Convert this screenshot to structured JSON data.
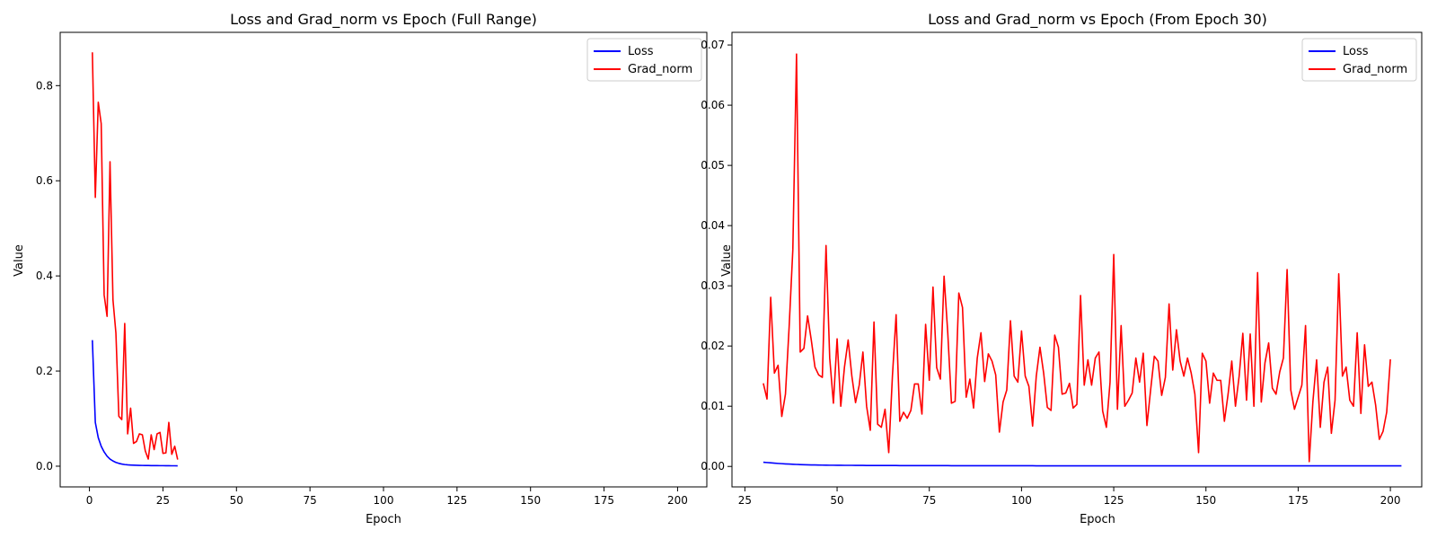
{
  "chart_data": [
    {
      "type": "line",
      "title": "Loss and Grad_norm vs Epoch (Full Range)",
      "xlabel": "Epoch",
      "ylabel": "Value",
      "xlim": [
        -9.95,
        209.95
      ],
      "ylim": [
        -0.0435,
        0.912
      ],
      "xticks": [
        0,
        25,
        50,
        75,
        100,
        125,
        150,
        175,
        200
      ],
      "yticks": [
        0.0,
        0.2,
        0.4,
        0.6,
        0.8
      ],
      "ytick_labels": [
        "0.0",
        "0.2",
        "0.4",
        "0.6",
        "0.8"
      ],
      "legend": "top-right",
      "grid": false,
      "series": [
        {
          "name": "Loss",
          "color": "#0000ff",
          "x_start": 1,
          "values": [
            0.265,
            0.092,
            0.06,
            0.042,
            0.03,
            0.021,
            0.015,
            0.011,
            0.008,
            0.006,
            0.0045,
            0.0035,
            0.0028,
            0.0024,
            0.0021,
            0.0019,
            0.0017,
            0.0016,
            0.0015,
            0.0014,
            0.0013,
            0.0012,
            0.0012,
            0.0011,
            0.0011,
            0.001,
            0.001,
            0.0009,
            0.0009,
            0.0008
          ]
        },
        {
          "name": "Grad_norm",
          "color": "#ff0000",
          "x_start": 1,
          "values": [
            0.87,
            0.565,
            0.765,
            0.72,
            0.36,
            0.315,
            0.64,
            0.35,
            0.28,
            0.105,
            0.098,
            0.3,
            0.068,
            0.122,
            0.048,
            0.052,
            0.068,
            0.066,
            0.032,
            0.015,
            0.066,
            0.035,
            0.068,
            0.071,
            0.027,
            0.028,
            0.092,
            0.025,
            0.042,
            0.014
          ]
        }
      ]
    },
    {
      "type": "line",
      "title": "Loss and Grad_norm vs Epoch (From Epoch 30)",
      "xlabel": "Epoch",
      "ylabel": "Value",
      "xlim": [
        21.5,
        208.5
      ],
      "ylim": [
        -0.0034,
        0.0721
      ],
      "xticks": [
        25,
        50,
        75,
        100,
        125,
        150,
        175,
        200
      ],
      "yticks": [
        0.0,
        0.01,
        0.02,
        0.03,
        0.04,
        0.05,
        0.06,
        0.07
      ],
      "ytick_labels": [
        "0.00",
        "0.01",
        "0.02",
        "0.03",
        "0.04",
        "0.05",
        "0.06",
        "0.07"
      ],
      "legend": "top-right",
      "grid": false,
      "series": [
        {
          "name": "Loss",
          "color": "#0000ff",
          "x_start": 30,
          "values": [
            0.0007,
            0.00065,
            0.0006,
            0.00055,
            0.0005,
            0.00046,
            0.00042,
            0.00039,
            0.00036,
            0.00033,
            0.00031,
            0.00029,
            0.00027,
            0.00025,
            0.00024,
            0.00023,
            0.00022,
            0.00021,
            0.0002,
            0.0002,
            0.00019,
            0.00019,
            0.00018,
            0.00018,
            0.00018,
            0.00017,
            0.00017,
            0.00017,
            0.00016,
            0.00016,
            0.00016,
            0.00016,
            0.00015,
            0.00015,
            0.00015,
            0.00015,
            0.00015,
            0.00014,
            0.00014,
            0.00014,
            0.00014,
            0.00014,
            0.00014,
            0.00013,
            0.00013,
            0.00013,
            0.00013,
            0.00013,
            0.00013,
            0.00013,
            0.00013,
            0.00012,
            0.00012,
            0.00012,
            0.00012,
            0.00012,
            0.00012,
            0.00012,
            0.00012,
            0.00012,
            0.00012,
            0.00011,
            0.00011,
            0.00011,
            0.00011,
            0.00011,
            0.00011,
            0.00011,
            0.00011,
            0.00011,
            0.00011,
            0.00011,
            0.00011,
            0.00011,
            0.0001,
            0.0001,
            0.0001,
            0.0001,
            0.0001,
            0.0001,
            0.0001,
            0.0001,
            0.0001,
            0.0001,
            0.0001,
            0.0001,
            0.0001,
            0.0001,
            0.0001,
            0.0001,
            0.0001,
            0.0001,
            0.0001,
            0.0001,
            0.0001,
            0.0001,
            0.0001,
            0.0001,
            0.0001,
            0.0001,
            0.0001,
            0.0001,
            0.0001,
            0.0001,
            0.0001,
            0.0001,
            0.0001,
            0.0001,
            0.0001,
            0.0001,
            0.0001,
            0.0001,
            0.0001,
            0.0001,
            0.0001,
            0.0001,
            0.0001,
            0.0001,
            0.0001,
            0.0001,
            0.0001,
            0.0001,
            0.0001,
            0.0001,
            0.0001,
            0.0001,
            0.0001,
            0.0001,
            0.0001,
            0.0001,
            0.0001,
            0.0001,
            0.0001,
            0.0001,
            0.0001,
            0.0001,
            0.0001,
            0.0001,
            0.0001,
            0.0001,
            0.0001,
            0.0001,
            0.0001,
            0.0001,
            0.0001,
            0.0001,
            0.0001,
            0.0001,
            0.0001,
            0.0001,
            0.0001,
            0.0001,
            0.0001,
            0.0001,
            0.0001,
            0.0001,
            0.0001,
            0.0001,
            0.0001,
            0.0001,
            0.0001,
            0.0001,
            0.0001,
            0.0001,
            0.0001,
            0.0001,
            0.0001,
            0.0001,
            0.0001,
            0.0001,
            0.0001,
            0.0001,
            0.0001,
            0.0001
          ]
        },
        {
          "name": "Grad_norm",
          "color": "#ff0000",
          "x_start": 30,
          "values": [
            0.0138,
            0.0112,
            0.0281,
            0.0155,
            0.0168,
            0.0083,
            0.012,
            0.0232,
            0.036,
            0.0685,
            0.019,
            0.0196,
            0.025,
            0.021,
            0.0165,
            0.0152,
            0.0148,
            0.0367,
            0.018,
            0.0105,
            0.0212,
            0.01,
            0.0165,
            0.021,
            0.015,
            0.0106,
            0.0135,
            0.019,
            0.01,
            0.006,
            0.024,
            0.007,
            0.0065,
            0.0095,
            0.0023,
            0.015,
            0.0252,
            0.0075,
            0.009,
            0.008,
            0.0093,
            0.0137,
            0.0137,
            0.0087,
            0.0236,
            0.0143,
            0.0298,
            0.0164,
            0.0145,
            0.0316,
            0.0222,
            0.0105,
            0.0108,
            0.0288,
            0.0264,
            0.0115,
            0.0145,
            0.0097,
            0.018,
            0.0222,
            0.0141,
            0.0187,
            0.0175,
            0.0152,
            0.0057,
            0.0107,
            0.0127,
            0.0242,
            0.015,
            0.014,
            0.0225,
            0.015,
            0.0133,
            0.0067,
            0.015,
            0.0198,
            0.0155,
            0.0098,
            0.0093,
            0.0218,
            0.0198,
            0.012,
            0.0122,
            0.0138,
            0.0097,
            0.0103,
            0.0284,
            0.0135,
            0.0177,
            0.0135,
            0.018,
            0.019,
            0.0092,
            0.0065,
            0.014,
            0.0352,
            0.0095,
            0.0234,
            0.01,
            0.011,
            0.0122,
            0.018,
            0.014,
            0.0188,
            0.0068,
            0.0127,
            0.0183,
            0.0175,
            0.0118,
            0.0148,
            0.027,
            0.016,
            0.0227,
            0.0175,
            0.015,
            0.018,
            0.0155,
            0.012,
            0.0023,
            0.0188,
            0.0175,
            0.0105,
            0.0155,
            0.0143,
            0.0143,
            0.0075,
            0.012,
            0.0175,
            0.01,
            0.015,
            0.0221,
            0.011,
            0.022,
            0.01,
            0.0322,
            0.0107,
            0.0172,
            0.0205,
            0.013,
            0.012,
            0.0157,
            0.018,
            0.0327,
            0.0127,
            0.0095,
            0.0115,
            0.0135,
            0.0234,
            0.0008,
            0.0108,
            0.0177,
            0.0065,
            0.014,
            0.0165,
            0.0055,
            0.011,
            0.032,
            0.015,
            0.0165,
            0.011,
            0.01,
            0.0222,
            0.0088,
            0.0202,
            0.0133,
            0.014,
            0.0102,
            0.0045,
            0.0058,
            0.009,
            0.0178
          ]
        }
      ]
    }
  ]
}
